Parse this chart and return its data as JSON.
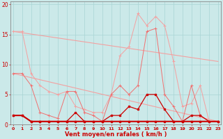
{
  "x": [
    0,
    1,
    2,
    3,
    4,
    5,
    6,
    7,
    8,
    9,
    10,
    11,
    12,
    13,
    14,
    15,
    16,
    17,
    18,
    19,
    20,
    21,
    22,
    23
  ],
  "line_rafales": [
    15.5,
    15.5,
    8.5,
    6.5,
    5.5,
    5.0,
    5.5,
    3.0,
    2.5,
    2.0,
    2.0,
    5.0,
    11.5,
    13.0,
    18.5,
    16.5,
    18.0,
    16.5,
    10.5,
    3.0,
    3.5,
    6.5,
    0.5,
    0.5
  ],
  "line_moyen": [
    8.5,
    8.5,
    6.5,
    2.0,
    1.5,
    1.0,
    5.5,
    5.5,
    2.0,
    1.5,
    0.5,
    5.0,
    6.5,
    5.0,
    6.5,
    15.5,
    16.0,
    5.0,
    3.0,
    0.5,
    6.5,
    1.5,
    0.5,
    0.5
  ],
  "line_dark1": [
    1.5,
    1.5,
    0.5,
    0.5,
    0.5,
    0.5,
    0.5,
    2.0,
    0.5,
    0.5,
    0.5,
    1.5,
    1.5,
    3.0,
    2.5,
    5.0,
    5.0,
    2.5,
    0.5,
    0.5,
    1.5,
    1.5,
    0.5,
    0.5
  ],
  "line_dark2": [
    1.5,
    1.5,
    0.5,
    0.5,
    0.5,
    0.5,
    0.5,
    0.5,
    0.5,
    0.5,
    0.5,
    0.5,
    0.5,
    0.5,
    0.5,
    0.5,
    0.5,
    0.5,
    0.5,
    0.5,
    0.5,
    0.5,
    0.5,
    0.5
  ],
  "trend1_x": [
    0,
    23
  ],
  "trend1_y": [
    15.5,
    10.5
  ],
  "trend2_x": [
    0,
    23
  ],
  "trend2_y": [
    8.5,
    0.5
  ],
  "color_pink": "#F4A0A0",
  "color_salmon": "#F07070",
  "color_dark_red": "#CC0000",
  "color_red": "#DD2020",
  "bg_color": "#CBE9E9",
  "grid_color": "#A8D4D4",
  "spine_color": "#888888",
  "xlabel": "Vent moyen/en rafales ( km/h )",
  "yticks": [
    0,
    5,
    10,
    15,
    20
  ],
  "xticks": [
    0,
    1,
    2,
    3,
    4,
    5,
    6,
    7,
    8,
    9,
    10,
    11,
    12,
    13,
    14,
    15,
    16,
    17,
    18,
    19,
    20,
    21,
    22,
    23
  ],
  "xlim": [
    -0.3,
    23.3
  ],
  "ylim": [
    0,
    20.5
  ]
}
